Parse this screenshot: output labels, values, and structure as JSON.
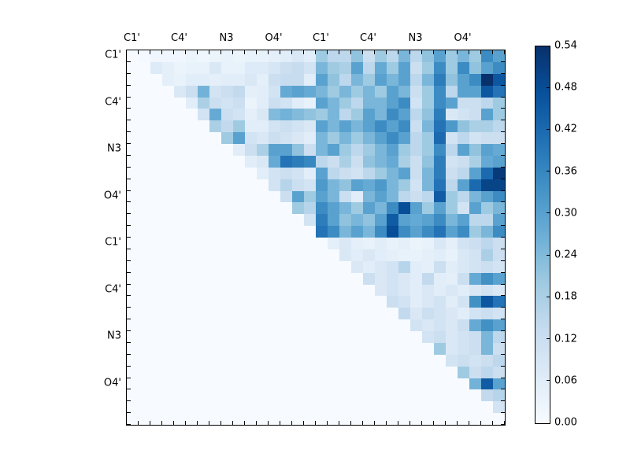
{
  "figure": {
    "background": "#ffffff",
    "text_color": "#000000",
    "axis_color": "#000000"
  },
  "chart_data": {
    "type": "heatmap",
    "title": "",
    "size": 32,
    "colormap": "Blues",
    "grid": false,
    "x_axis": {
      "label": "",
      "tick_labels": [
        "C1'",
        "C4'",
        "N3",
        "O4'",
        "C1'",
        "C4'",
        "N3",
        "O4'"
      ],
      "tick_positions": [
        0,
        4,
        8,
        12,
        16,
        20,
        24,
        28
      ],
      "labels_side": "top"
    },
    "y_axis": {
      "label": "",
      "tick_labels": [
        "C1'",
        "C4'",
        "N3",
        "O4'",
        "C1'",
        "C4'",
        "N3",
        "O4'"
      ],
      "tick_positions": [
        0,
        4,
        8,
        12,
        16,
        20,
        24,
        28
      ],
      "labels_side": "left"
    },
    "colorbar": {
      "min": 0.0,
      "max": 0.54,
      "tick_step": 0.06,
      "tick_labels": [
        "0.00",
        "0.06",
        "0.12",
        "0.18",
        "0.24",
        "0.30",
        "0.36",
        "0.42",
        "0.48",
        "0.54"
      ],
      "position": "right"
    },
    "colormap_stops": [
      "#f7fbff",
      "#deebf7",
      "#c6dbef",
      "#9ecae1",
      "#6baed6",
      "#4292c6",
      "#2171b5",
      "#08519c",
      "#08306b"
    ],
    "matrix": [
      [
        0,
        0.01,
        0.02,
        0.02,
        0.02,
        0.03,
        0.02,
        0.03,
        0.04,
        0.03,
        0.04,
        0.04,
        0.05,
        0.06,
        0.08,
        0.06,
        0.2,
        0.15,
        0.15,
        0.22,
        0.12,
        0.2,
        0.15,
        0.25,
        0.15,
        0.22,
        0.3,
        0.2,
        0.25,
        0.2,
        0.35,
        0.3
      ],
      [
        0,
        0,
        0.07,
        0.05,
        0.03,
        0.04,
        0.04,
        0.08,
        0.04,
        0.04,
        0.07,
        0.07,
        0.09,
        0.12,
        0.13,
        0.1,
        0.25,
        0.2,
        0.18,
        0.3,
        0.15,
        0.28,
        0.2,
        0.3,
        0.12,
        0.2,
        0.35,
        0.2,
        0.35,
        0.22,
        0.3,
        0.35
      ],
      [
        0,
        0,
        0,
        0.05,
        0.04,
        0.06,
        0.06,
        0.05,
        0.06,
        0.06,
        0.08,
        0.05,
        0.12,
        0.13,
        0.13,
        0.06,
        0.3,
        0.22,
        0.15,
        0.25,
        0.2,
        0.3,
        0.25,
        0.3,
        0.15,
        0.25,
        0.38,
        0.22,
        0.3,
        0.35,
        0.54,
        0.46
      ],
      [
        0,
        0,
        0,
        0,
        0.08,
        0.12,
        0.26,
        0.1,
        0.12,
        0.14,
        0.05,
        0.06,
        0.1,
        0.28,
        0.3,
        0.28,
        0.25,
        0.2,
        0.25,
        0.2,
        0.25,
        0.2,
        0.3,
        0.25,
        0.12,
        0.2,
        0.35,
        0.15,
        0.3,
        0.3,
        0.46,
        0.4
      ],
      [
        0,
        0,
        0,
        0,
        0,
        0.06,
        0.18,
        0.12,
        0.1,
        0.12,
        0.03,
        0.06,
        0.12,
        0.1,
        0.06,
        0.04,
        0.3,
        0.25,
        0.2,
        0.15,
        0.25,
        0.25,
        0.3,
        0.35,
        0.1,
        0.2,
        0.35,
        0.3,
        0.12,
        0.12,
        0.15,
        0.2
      ],
      [
        0,
        0,
        0,
        0,
        0,
        0,
        0.1,
        0.28,
        0.12,
        0.1,
        0.05,
        0.08,
        0.24,
        0.26,
        0.24,
        0.22,
        0.2,
        0.25,
        0.15,
        0.2,
        0.3,
        0.25,
        0.35,
        0.3,
        0.15,
        0.22,
        0.38,
        0.08,
        0.1,
        0.12,
        0.3,
        0.2
      ],
      [
        0,
        0,
        0,
        0,
        0,
        0,
        0,
        0.18,
        0.14,
        0.2,
        0.06,
        0.06,
        0.1,
        0.12,
        0.1,
        0.08,
        0.3,
        0.25,
        0.3,
        0.25,
        0.3,
        0.35,
        0.3,
        0.35,
        0.12,
        0.25,
        0.4,
        0.32,
        0.22,
        0.18,
        0.18,
        0.15
      ],
      [
        0,
        0,
        0,
        0,
        0,
        0,
        0,
        0,
        0.2,
        0.3,
        0.1,
        0.08,
        0.12,
        0.1,
        0.08,
        0.06,
        0.25,
        0.2,
        0.25,
        0.2,
        0.25,
        0.3,
        0.35,
        0.3,
        0.15,
        0.2,
        0.42,
        0.1,
        0.15,
        0.1,
        0.12,
        0.12
      ],
      [
        0,
        0,
        0,
        0,
        0,
        0,
        0,
        0,
        0,
        0.06,
        0.12,
        0.18,
        0.3,
        0.3,
        0.22,
        0.12,
        0.25,
        0.3,
        0.2,
        0.15,
        0.2,
        0.25,
        0.3,
        0.2,
        0.15,
        0.2,
        0.35,
        0.15,
        0.3,
        0.22,
        0.3,
        0.28
      ],
      [
        0,
        0,
        0,
        0,
        0,
        0,
        0,
        0,
        0,
        0,
        0.06,
        0.08,
        0.28,
        0.4,
        0.38,
        0.36,
        0.15,
        0.12,
        0.18,
        0.12,
        0.22,
        0.25,
        0.28,
        0.18,
        0.12,
        0.22,
        0.38,
        0.1,
        0.12,
        0.18,
        0.28,
        0.3
      ],
      [
        0,
        0,
        0,
        0,
        0,
        0,
        0,
        0,
        0,
        0,
        0,
        0.06,
        0.1,
        0.12,
        0.1,
        0.06,
        0.3,
        0.15,
        0.12,
        0.1,
        0.15,
        0.2,
        0.25,
        0.3,
        0.12,
        0.25,
        0.38,
        0.12,
        0.15,
        0.3,
        0.42,
        0.52
      ],
      [
        0,
        0,
        0,
        0,
        0,
        0,
        0,
        0,
        0,
        0,
        0,
        0,
        0.1,
        0.16,
        0.12,
        0.1,
        0.32,
        0.25,
        0.22,
        0.3,
        0.28,
        0.32,
        0.25,
        0.2,
        0.1,
        0.25,
        0.4,
        0.15,
        0.3,
        0.42,
        0.5,
        0.5
      ],
      [
        0,
        0,
        0,
        0,
        0,
        0,
        0,
        0,
        0,
        0,
        0,
        0,
        0,
        0.12,
        0.3,
        0.2,
        0.3,
        0.25,
        0.12,
        0.06,
        0.25,
        0.3,
        0.25,
        0.15,
        0.12,
        0.15,
        0.45,
        0.2,
        0.15,
        0.25,
        0.3,
        0.35
      ],
      [
        0,
        0,
        0,
        0,
        0,
        0,
        0,
        0,
        0,
        0,
        0,
        0,
        0,
        0,
        0.2,
        0.16,
        0.35,
        0.3,
        0.25,
        0.2,
        0.3,
        0.25,
        0.35,
        0.48,
        0.3,
        0.2,
        0.3,
        0.2,
        0.1,
        0.3,
        0.2,
        0.25
      ],
      [
        0,
        0,
        0,
        0,
        0,
        0,
        0,
        0,
        0,
        0,
        0,
        0,
        0,
        0,
        0,
        0.1,
        0.38,
        0.3,
        0.22,
        0.25,
        0.22,
        0.3,
        0.45,
        0.3,
        0.28,
        0.3,
        0.35,
        0.25,
        0.3,
        0.15,
        0.15,
        0.3
      ],
      [
        0,
        0,
        0,
        0,
        0,
        0,
        0,
        0,
        0,
        0,
        0,
        0,
        0,
        0,
        0,
        0,
        0.4,
        0.35,
        0.25,
        0.3,
        0.25,
        0.35,
        0.48,
        0.35,
        0.3,
        0.35,
        0.4,
        0.3,
        0.35,
        0.2,
        0.25,
        0.35
      ],
      [
        0,
        0,
        0,
        0,
        0,
        0,
        0,
        0,
        0,
        0,
        0,
        0,
        0,
        0,
        0,
        0,
        0,
        0.05,
        0.08,
        0.05,
        0.04,
        0.06,
        0.04,
        0.05,
        0.03,
        0.04,
        0.08,
        0.05,
        0.1,
        0.12,
        0.15,
        0.12
      ],
      [
        0,
        0,
        0,
        0,
        0,
        0,
        0,
        0,
        0,
        0,
        0,
        0,
        0,
        0,
        0,
        0,
        0,
        0,
        0.08,
        0.06,
        0.08,
        0.06,
        0.05,
        0.04,
        0.04,
        0.05,
        0.06,
        0.04,
        0.08,
        0.1,
        0.18,
        0.12
      ],
      [
        0,
        0,
        0,
        0,
        0,
        0,
        0,
        0,
        0,
        0,
        0,
        0,
        0,
        0,
        0,
        0,
        0,
        0,
        0,
        0.08,
        0.06,
        0.08,
        0.1,
        0.16,
        0.06,
        0.05,
        0.12,
        0.06,
        0.08,
        0.1,
        0.12,
        0.1
      ],
      [
        0,
        0,
        0,
        0,
        0,
        0,
        0,
        0,
        0,
        0,
        0,
        0,
        0,
        0,
        0,
        0,
        0,
        0,
        0,
        0,
        0.12,
        0.08,
        0.1,
        0.08,
        0.06,
        0.14,
        0.06,
        0.05,
        0.12,
        0.28,
        0.34,
        0.3
      ],
      [
        0,
        0,
        0,
        0,
        0,
        0,
        0,
        0,
        0,
        0,
        0,
        0,
        0,
        0,
        0,
        0,
        0,
        0,
        0,
        0,
        0,
        0.08,
        0.1,
        0.08,
        0.06,
        0.08,
        0.06,
        0.08,
        0.06,
        0.08,
        0.1,
        0.08
      ],
      [
        0,
        0,
        0,
        0,
        0,
        0,
        0,
        0,
        0,
        0,
        0,
        0,
        0,
        0,
        0,
        0,
        0,
        0,
        0,
        0,
        0,
        0,
        0.12,
        0.1,
        0.06,
        0.08,
        0.1,
        0.06,
        0.1,
        0.34,
        0.46,
        0.4
      ],
      [
        0,
        0,
        0,
        0,
        0,
        0,
        0,
        0,
        0,
        0,
        0,
        0,
        0,
        0,
        0,
        0,
        0,
        0,
        0,
        0,
        0,
        0,
        0,
        0.14,
        0.08,
        0.12,
        0.1,
        0.08,
        0.06,
        0.1,
        0.12,
        0.1
      ],
      [
        0,
        0,
        0,
        0,
        0,
        0,
        0,
        0,
        0,
        0,
        0,
        0,
        0,
        0,
        0,
        0,
        0,
        0,
        0,
        0,
        0,
        0,
        0,
        0,
        0.1,
        0.08,
        0.1,
        0.08,
        0.12,
        0.28,
        0.34,
        0.3
      ],
      [
        0,
        0,
        0,
        0,
        0,
        0,
        0,
        0,
        0,
        0,
        0,
        0,
        0,
        0,
        0,
        0,
        0,
        0,
        0,
        0,
        0,
        0,
        0,
        0,
        0,
        0.1,
        0.12,
        0.08,
        0.1,
        0.12,
        0.25,
        0.15
      ],
      [
        0,
        0,
        0,
        0,
        0,
        0,
        0,
        0,
        0,
        0,
        0,
        0,
        0,
        0,
        0,
        0,
        0,
        0,
        0,
        0,
        0,
        0,
        0,
        0,
        0,
        0,
        0.2,
        0.08,
        0.1,
        0.12,
        0.25,
        0.12
      ],
      [
        0,
        0,
        0,
        0,
        0,
        0,
        0,
        0,
        0,
        0,
        0,
        0,
        0,
        0,
        0,
        0,
        0,
        0,
        0,
        0,
        0,
        0,
        0,
        0,
        0,
        0,
        0,
        0.1,
        0.12,
        0.1,
        0.12,
        0.15
      ],
      [
        0,
        0,
        0,
        0,
        0,
        0,
        0,
        0,
        0,
        0,
        0,
        0,
        0,
        0,
        0,
        0,
        0,
        0,
        0,
        0,
        0,
        0,
        0,
        0,
        0,
        0,
        0,
        0,
        0.2,
        0.12,
        0.15,
        0.12
      ],
      [
        0,
        0,
        0,
        0,
        0,
        0,
        0,
        0,
        0,
        0,
        0,
        0,
        0,
        0,
        0,
        0,
        0,
        0,
        0,
        0,
        0,
        0,
        0,
        0,
        0,
        0,
        0,
        0,
        0,
        0.26,
        0.45,
        0.3
      ],
      [
        0,
        0,
        0,
        0,
        0,
        0,
        0,
        0,
        0,
        0,
        0,
        0,
        0,
        0,
        0,
        0,
        0,
        0,
        0,
        0,
        0,
        0,
        0,
        0,
        0,
        0,
        0,
        0,
        0,
        0,
        0.14,
        0.16
      ],
      [
        0,
        0,
        0,
        0,
        0,
        0,
        0,
        0,
        0,
        0,
        0,
        0,
        0,
        0,
        0,
        0,
        0,
        0,
        0,
        0,
        0,
        0,
        0,
        0,
        0,
        0,
        0,
        0,
        0,
        0,
        0,
        0.1
      ],
      [
        0,
        0,
        0,
        0,
        0,
        0,
        0,
        0,
        0,
        0,
        0,
        0,
        0,
        0,
        0,
        0,
        0,
        0,
        0,
        0,
        0,
        0,
        0,
        0,
        0,
        0,
        0,
        0,
        0,
        0,
        0,
        0
      ]
    ]
  }
}
